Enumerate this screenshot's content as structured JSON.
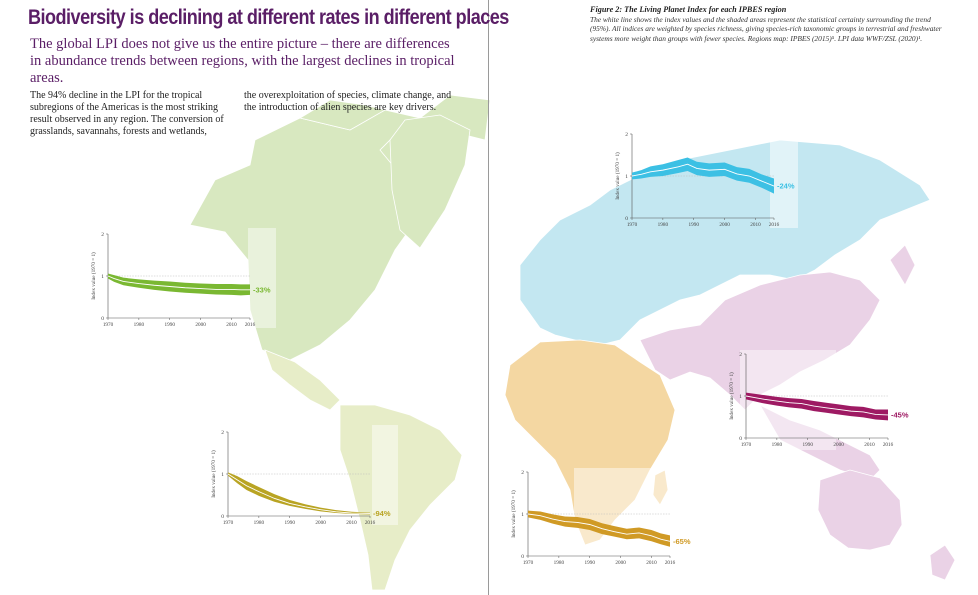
{
  "header": {
    "title": "Biodiversity is declining at different rates in different places",
    "subtitle": "The global LPI does not give us the entire picture – there are differences in abundance trends between regions, with the largest declines in tropical areas."
  },
  "body_text": {
    "column1": "The 94% decline in the LPI for the tropical subregions of the Americas is the most striking result observed in any region. The conversion of grasslands, savannahs, forests and wetlands,",
    "column2": "the overexploitation of species, climate change, and the introduction of alien species are key drivers."
  },
  "figure": {
    "title": "Figure 2: The Living Planet Index for each IPBES region",
    "caption": "The white line shows the index values and the shaded areas represent the statistical certainty surrounding the trend (95%). All indices are weighted by species richness, giving species-rich taxonomic groups in terrestrial and freshwater systems more weight than groups with fewer species. Regions map: IPBES (2015)⁵. LPI data WWF/ZSL (2020)¹."
  },
  "colors": {
    "title_purple": "#5a1e66",
    "north_america": "#7ab832",
    "latin_america": "#b9a423",
    "europe_central_asia": "#3cc0e4",
    "africa": "#d09a25",
    "asia_pacific": "#9e1a63",
    "map_north_america": "#d8e8c0",
    "map_latin_america": "#e7edc8",
    "map_europe_central_asia": "#c3e7f1",
    "map_africa": "#f4d7a2",
    "map_asia_pacific": "#ead2e6"
  },
  "chart_data": [
    {
      "type": "area",
      "region": "North America",
      "ylabel": "Index value (1970 = 1)",
      "ylim": [
        0,
        2
      ],
      "yticks": [
        0,
        1,
        2
      ],
      "xticks": [
        1970,
        1980,
        1990,
        2000,
        2010,
        2016
      ],
      "x": [
        1970,
        1972,
        1975,
        1980,
        1985,
        1990,
        1995,
        2000,
        2005,
        2010,
        2013,
        2016
      ],
      "values": [
        1.0,
        0.94,
        0.87,
        0.82,
        0.78,
        0.75,
        0.72,
        0.7,
        0.68,
        0.68,
        0.67,
        0.67
      ],
      "lower": [
        0.94,
        0.86,
        0.78,
        0.72,
        0.67,
        0.63,
        0.6,
        0.58,
        0.56,
        0.55,
        0.54,
        0.55
      ],
      "upper": [
        1.06,
        1.02,
        0.96,
        0.92,
        0.89,
        0.87,
        0.84,
        0.82,
        0.81,
        0.81,
        0.8,
        0.8
      ],
      "label": "-33%"
    },
    {
      "type": "area",
      "region": "Latin America and the Caribbean",
      "ylabel": "Index value (1970 = 1)",
      "ylim": [
        0,
        2
      ],
      "yticks": [
        0,
        1,
        2
      ],
      "xticks": [
        1970,
        1980,
        1990,
        2000,
        2010,
        2016
      ],
      "x": [
        1970,
        1973,
        1976,
        1980,
        1985,
        1990,
        1995,
        2000,
        2005,
        2010,
        2016
      ],
      "values": [
        1.0,
        0.86,
        0.72,
        0.58,
        0.42,
        0.3,
        0.22,
        0.15,
        0.1,
        0.07,
        0.06
      ],
      "lower": [
        0.96,
        0.78,
        0.62,
        0.48,
        0.34,
        0.24,
        0.17,
        0.11,
        0.07,
        0.05,
        0.04
      ],
      "upper": [
        1.04,
        0.95,
        0.83,
        0.69,
        0.52,
        0.38,
        0.28,
        0.2,
        0.14,
        0.1,
        0.08
      ],
      "label": "-94%"
    },
    {
      "type": "area",
      "region": "Europe and Central Asia",
      "ylabel": "Index value (1970 = 1)",
      "ylim": [
        0,
        2
      ],
      "yticks": [
        0,
        1,
        2
      ],
      "xticks": [
        1970,
        1980,
        1990,
        2000,
        2010,
        2016
      ],
      "x": [
        1970,
        1973,
        1976,
        1980,
        1985,
        1988,
        1991,
        1995,
        2000,
        2004,
        2008,
        2012,
        2016
      ],
      "values": [
        1.0,
        1.04,
        1.1,
        1.14,
        1.22,
        1.28,
        1.18,
        1.14,
        1.16,
        1.05,
        1.0,
        0.88,
        0.76
      ],
      "lower": [
        0.92,
        0.94,
        0.98,
        1.0,
        1.07,
        1.12,
        1.02,
        0.98,
        1.0,
        0.89,
        0.84,
        0.72,
        0.58
      ],
      "upper": [
        1.08,
        1.14,
        1.23,
        1.28,
        1.38,
        1.44,
        1.34,
        1.3,
        1.32,
        1.21,
        1.17,
        1.04,
        0.94
      ],
      "label": "-24%"
    },
    {
      "type": "area",
      "region": "Africa",
      "ylabel": "Index value (1970 = 1)",
      "ylim": [
        0,
        2
      ],
      "yticks": [
        0,
        1,
        2
      ],
      "xticks": [
        1970,
        1980,
        1990,
        2000,
        2010,
        2016
      ],
      "x": [
        1970,
        1974,
        1978,
        1982,
        1986,
        1990,
        1994,
        1998,
        2002,
        2006,
        2010,
        2013,
        2016
      ],
      "values": [
        1.0,
        0.96,
        0.88,
        0.82,
        0.8,
        0.75,
        0.65,
        0.58,
        0.52,
        0.55,
        0.48,
        0.4,
        0.35
      ],
      "lower": [
        0.92,
        0.86,
        0.77,
        0.7,
        0.67,
        0.62,
        0.52,
        0.46,
        0.4,
        0.42,
        0.35,
        0.28,
        0.22
      ],
      "upper": [
        1.08,
        1.06,
        0.99,
        0.94,
        0.93,
        0.88,
        0.78,
        0.71,
        0.65,
        0.68,
        0.62,
        0.54,
        0.49
      ],
      "label": "-65%"
    },
    {
      "type": "area",
      "region": "Asia Pacific",
      "ylabel": "Index value (1970 = 1)",
      "ylim": [
        0,
        2
      ],
      "yticks": [
        0,
        1,
        2
      ],
      "xticks": [
        1970,
        1980,
        1990,
        2000,
        2010,
        2016
      ],
      "x": [
        1970,
        1973,
        1976,
        1980,
        1984,
        1988,
        1992,
        1996,
        2000,
        2004,
        2008,
        2012,
        2016
      ],
      "values": [
        1.0,
        0.96,
        0.92,
        0.88,
        0.84,
        0.82,
        0.76,
        0.72,
        0.68,
        0.64,
        0.62,
        0.56,
        0.55
      ],
      "lower": [
        0.92,
        0.87,
        0.82,
        0.77,
        0.73,
        0.7,
        0.64,
        0.6,
        0.56,
        0.52,
        0.49,
        0.44,
        0.42
      ],
      "upper": [
        1.08,
        1.05,
        1.02,
        0.98,
        0.95,
        0.93,
        0.88,
        0.84,
        0.8,
        0.76,
        0.74,
        0.68,
        0.68
      ],
      "label": "-45%"
    }
  ]
}
